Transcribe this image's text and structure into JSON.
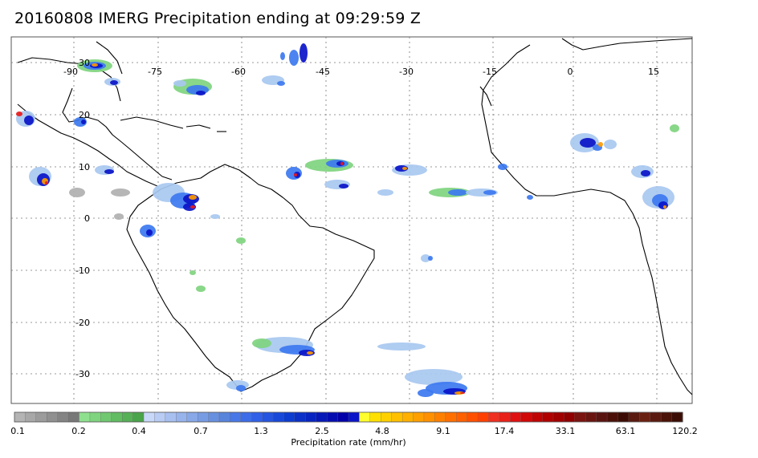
{
  "title": "20160808 IMERG Precipitation ending at 09:29:59 Z",
  "map": {
    "lon_labels": [
      "-90",
      "-75",
      "-60",
      "-45",
      "-30",
      "-15",
      "0",
      "15"
    ],
    "lat_labels": [
      "30",
      "20",
      "10",
      "0",
      "-10",
      "-20",
      "-30"
    ],
    "grid": "dotted"
  },
  "colorbar": {
    "label": "Precipitation rate (mm/hr)",
    "tick_labels": [
      "0.1",
      "0.2",
      "0.4",
      "0.7",
      "1.3",
      "2.5",
      "4.8",
      "9.1",
      "17.4",
      "33.1",
      "63.1",
      "120.2"
    ],
    "colors": {
      "gray": "#b0b0b0",
      "green": "#7fd47f",
      "light_blue": "#a8c8f0",
      "blue": "#3c78f0",
      "dark_blue": "#0a14c8",
      "yellow": "#ffe600",
      "orange": "#ff9a00",
      "red": "#e81a1a",
      "dark_red": "#8c0a0a",
      "brown": "#5a1a10"
    }
  }
}
